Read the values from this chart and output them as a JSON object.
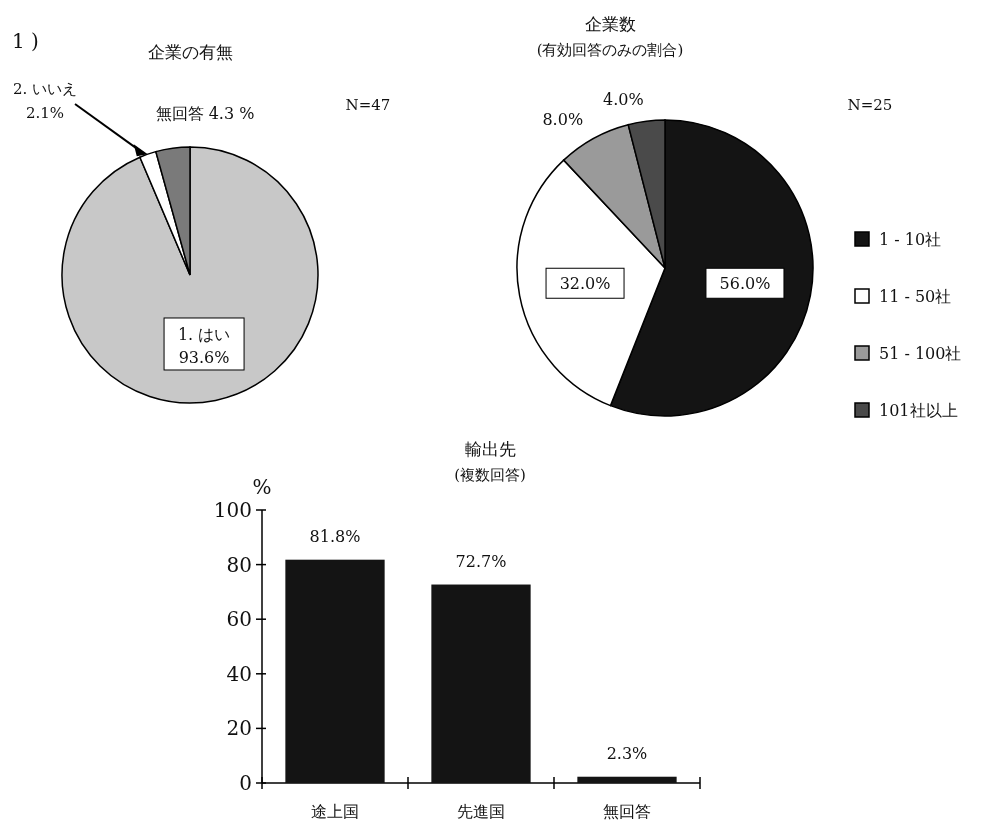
{
  "chart_data": [
    {
      "type": "pie",
      "title": "企業の有無",
      "categories": [
        "1. はい",
        "2. いいえ",
        "無回答"
      ],
      "values": [
        93.6,
        2.1,
        4.3
      ],
      "colors": [
        "#c8c8c8",
        "#ffffff",
        "#7a7a7a"
      ],
      "value_labels": [
        "93.6%",
        "2.1%",
        "4.3 %"
      ],
      "legend": false,
      "annotations": [
        "1 )",
        "N=47"
      ]
    },
    {
      "type": "pie",
      "title": "企業数",
      "subtitle": "(有効回答のみの割合)",
      "categories": [
        "1 - 10社",
        "11 - 50社",
        "51 - 100社",
        "101社以上"
      ],
      "values": [
        56.0,
        32.0,
        8.0,
        4.0
      ],
      "colors": [
        "#141414",
        "#ffffff",
        "#9a9a9a",
        "#4a4a4a"
      ],
      "value_labels": [
        "56.0%",
        "32.0%",
        "8.0%",
        "4.0%"
      ],
      "legend": "right",
      "annotations": [
        "N=25"
      ]
    },
    {
      "type": "bar",
      "title": "輸出先",
      "subtitle": "(複数回答)",
      "ylabel": "%",
      "categories": [
        "途上国",
        "先進国",
        "無回答"
      ],
      "values": [
        81.8,
        72.7,
        2.3
      ],
      "color": "#141414",
      "value_labels": [
        "81.8%",
        "72.7%",
        "2.3%"
      ],
      "ylim": [
        0,
        100
      ],
      "yticks": [
        0,
        20,
        40,
        60,
        80,
        100
      ]
    }
  ]
}
